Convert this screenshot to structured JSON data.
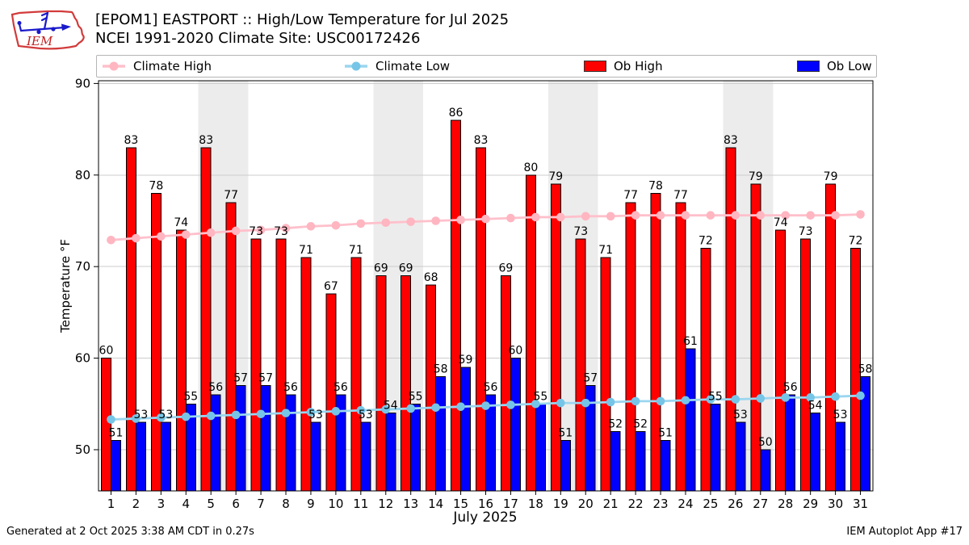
{
  "header": {
    "title_line1": "[EPOM1] EASTPORT :: High/Low Temperature for Jul 2025",
    "title_line2": "NCEI 1991-2020 Climate Site: USC00172426",
    "logo_text": "IEM"
  },
  "footer": {
    "generated": "Generated at 2 Oct 2025 3:38 AM CDT in 0.27s",
    "app": "IEM Autoplot App #17"
  },
  "chart_data": {
    "type": "bar+line",
    "title": "[EPOM1] EASTPORT :: High/Low Temperature for Jul 2025",
    "subtitle": "NCEI 1991-2020 Climate Site: USC00172426",
    "xlabel": "July 2025",
    "ylabel": "Temperature °F",
    "x": [
      1,
      2,
      3,
      4,
      5,
      6,
      7,
      8,
      9,
      10,
      11,
      12,
      13,
      14,
      15,
      16,
      17,
      18,
      19,
      20,
      21,
      22,
      23,
      24,
      25,
      26,
      27,
      28,
      29,
      30,
      31
    ],
    "ylim": [
      45.5,
      90.3
    ],
    "yticks": [
      50,
      60,
      70,
      80,
      90
    ],
    "grid": "horizontal",
    "grid_color": "#cccccc",
    "weekend_shaded_days": [
      5,
      6,
      12,
      13,
      19,
      20,
      26,
      27
    ],
    "weekend_band_color": "#ececec",
    "legend_position": "top",
    "series": [
      {
        "name": "Climate High",
        "type": "line",
        "color": "#ffc0cb",
        "marker_color": "#ffb6c1",
        "values": [
          72.9,
          73.1,
          73.3,
          73.5,
          73.7,
          73.9,
          74.0,
          74.2,
          74.4,
          74.5,
          74.7,
          74.8,
          74.9,
          75.0,
          75.1,
          75.2,
          75.3,
          75.4,
          75.4,
          75.5,
          75.5,
          75.6,
          75.6,
          75.6,
          75.6,
          75.6,
          75.6,
          75.6,
          75.6,
          75.6,
          75.7
        ]
      },
      {
        "name": "Climate Low",
        "type": "line",
        "color": "#9bd6ef",
        "marker_color": "#76c5e7",
        "values": [
          53.3,
          53.4,
          53.5,
          53.6,
          53.7,
          53.8,
          53.9,
          54.0,
          54.1,
          54.2,
          54.3,
          54.4,
          54.5,
          54.6,
          54.7,
          54.8,
          54.9,
          55.0,
          55.1,
          55.1,
          55.2,
          55.3,
          55.3,
          55.4,
          55.5,
          55.5,
          55.6,
          55.7,
          55.7,
          55.8,
          55.9
        ]
      },
      {
        "name": "Ob High",
        "type": "bar",
        "color": "#ff0000",
        "edge_color": "#000000",
        "values": [
          60,
          83,
          78,
          74,
          83,
          77,
          73,
          73,
          71,
          67,
          71,
          69,
          69,
          68,
          86,
          83,
          69,
          80,
          79,
          73,
          71,
          77,
          78,
          77,
          72,
          83,
          79,
          74,
          73,
          79,
          72
        ]
      },
      {
        "name": "Ob Low",
        "type": "bar",
        "color": "#0000ff",
        "edge_color": "#000000",
        "values": [
          51,
          53,
          53,
          55,
          56,
          57,
          57,
          56,
          53,
          56,
          53,
          54,
          55,
          58,
          59,
          56,
          60,
          55,
          51,
          57,
          52,
          52,
          51,
          61,
          55,
          53,
          50,
          56,
          54,
          53,
          58
        ]
      }
    ]
  }
}
